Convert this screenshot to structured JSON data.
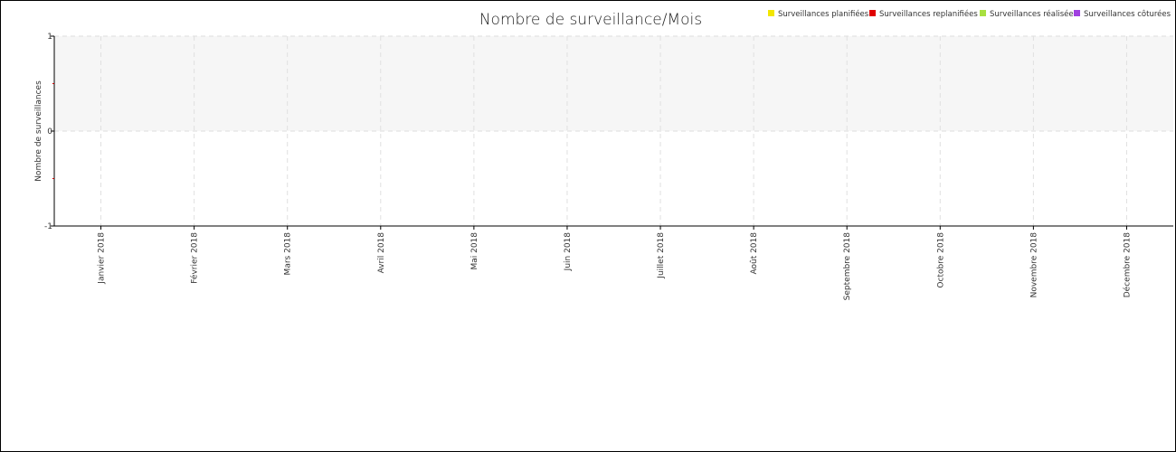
{
  "chart_data": {
    "type": "bar",
    "title": "Nombre de surveillance/Mois",
    "xlabel": "",
    "ylabel": "Nombre de surveillances",
    "ylim": [
      -1,
      1
    ],
    "yticks": [
      "1",
      "0",
      "-1"
    ],
    "categories": [
      "Janvier 2018",
      "Février 2018",
      "Mars 2018",
      "Avril 2018",
      "Mai 2018",
      "Juin 2018",
      "Juillet 2018",
      "Août 2018",
      "Septembre 2018",
      "Octobre 2018",
      "Novembre 2018",
      "Décembre 2018"
    ],
    "series": [
      {
        "name": "Surveillances planifiées",
        "color": "#f2e600",
        "values": [
          0,
          0,
          0,
          0,
          0,
          0,
          0,
          0,
          0,
          0,
          0,
          0
        ]
      },
      {
        "name": "Surveillances replanifiées",
        "color": "#e00000",
        "values": [
          0,
          0,
          0,
          0,
          0,
          0,
          0,
          0,
          0,
          0,
          0,
          0
        ]
      },
      {
        "name": "Surveillances réalisées",
        "color": "#a8e040",
        "values": [
          0,
          0,
          0,
          0,
          0,
          0,
          0,
          0,
          0,
          0,
          0,
          0
        ]
      },
      {
        "name": "Surveillances côturées",
        "color": "#a040e0",
        "values": [
          0,
          0,
          0,
          0,
          0,
          0,
          0,
          0,
          0,
          0,
          0,
          0
        ]
      }
    ],
    "legend_position": "top-right",
    "grid": true
  }
}
